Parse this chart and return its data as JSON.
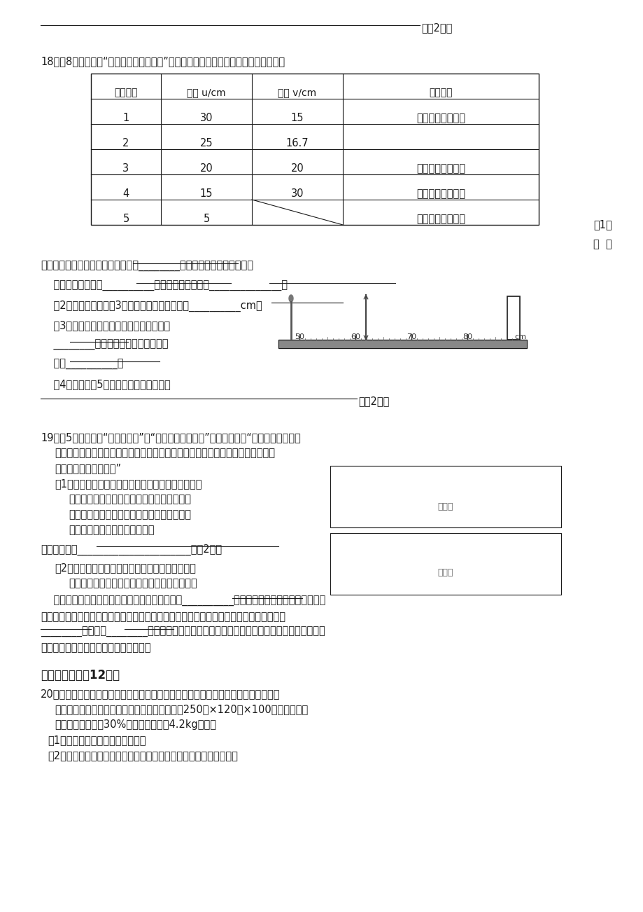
{
  "bg_color": "#f5f5f5",
  "text_color": "#1a1a1a",
  "table_headers": [
    "实验序号",
    "物距 u/cm",
    "像距 v/cm",
    "像的性质"
  ],
  "table_rows": [
    [
      "1",
      "30",
      "15",
      "倒立、缩小的实像"
    ],
    [
      "2",
      "25",
      "16.7",
      ""
    ],
    [
      "3",
      "20",
      "20",
      "倒立、等大的实像"
    ],
    [
      "4",
      "15",
      "30",
      "倒立、放大的实像"
    ],
    [
      "5",
      "5",
      "",
      "正立、放大的虚像"
    ]
  ]
}
